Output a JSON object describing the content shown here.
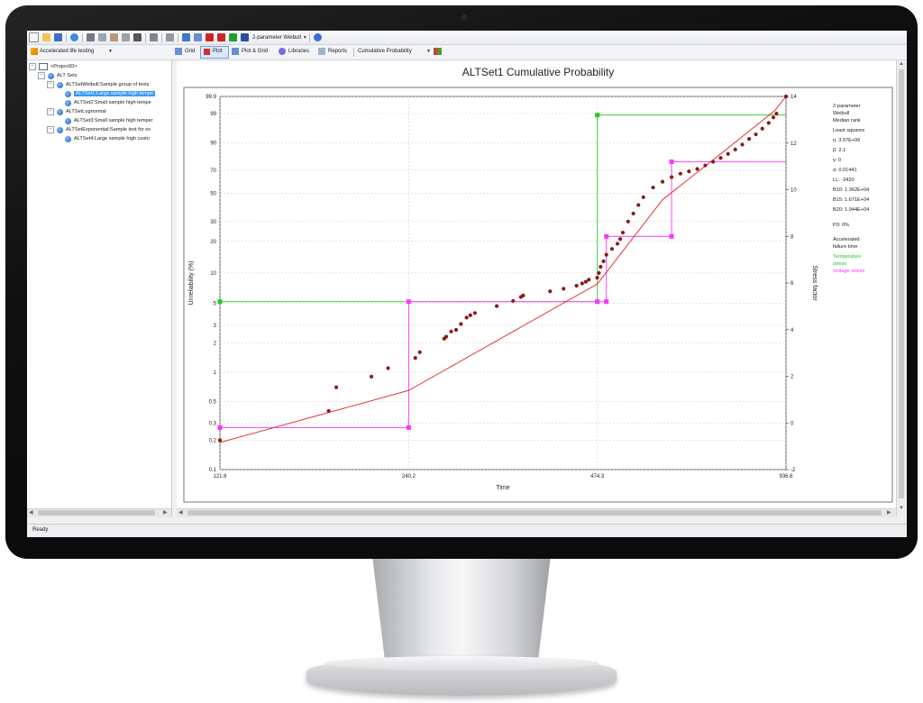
{
  "toolbar": {
    "model_label": "2-parameter Weibull",
    "app_mode_label": "Accelerated life testing",
    "tabs": [
      "Grid",
      "Plot",
      "Plot & Grid",
      "Libraries",
      "Reports"
    ],
    "plot_type_label": "Cumulative Probability"
  },
  "tree": {
    "root": "<ProjectID>",
    "group": "ALT Sets",
    "items": [
      {
        "label": "ALTSetWeibull:Sample group of tests",
        "children": [
          "ALTSet1:Large sample high tempe",
          "ALTSet2:Small sample high tempe"
        ]
      },
      {
        "label": "ALTSetLognormal",
        "children": [
          "ALTSet3:Small sample high temper"
        ]
      },
      {
        "label": "ALTSetExponential:Sample test for ex",
        "children": [
          "ALTSet4:Large sample high custo"
        ]
      }
    ],
    "selected": "ALTSet1:Large sample high tempe"
  },
  "status": "Ready",
  "chart_data": {
    "type": "scatter",
    "title": "ALTSet1 Cumulative Probability",
    "xlabel": "Time",
    "ylabel": "Unreliability (%)",
    "y2label": "Stress factor",
    "x_ticks": [
      "121.6",
      "240.2",
      "474.3",
      "936.6"
    ],
    "y_ticks": [
      "0.1",
      "0.2",
      "0.3",
      "0.5",
      "1",
      "2",
      "3",
      "5",
      "10",
      "20",
      "30",
      "50",
      "70",
      "90",
      "99",
      "99.9"
    ],
    "y2_ticks": [
      "-2",
      "0",
      "2",
      "4",
      "6",
      "8",
      "10",
      "12",
      "14"
    ],
    "ylim": [
      0.1,
      99.9
    ],
    "y2lim": [
      -2,
      14
    ],
    "xlim": [
      121.6,
      936.6
    ],
    "y_scale": "weibull",
    "x_scale": "log",
    "series": [
      {
        "name": "Observed data",
        "color": "#8b1a1a",
        "points": [
          [
            121.6,
            0.2
          ],
          [
            180.0,
            0.4
          ],
          [
            185.0,
            0.7
          ],
          [
            210.0,
            0.9
          ],
          [
            223.0,
            1.1
          ],
          [
            246.0,
            1.4
          ],
          [
            250.0,
            1.6
          ],
          [
            273.0,
            2.2
          ],
          [
            275.0,
            2.3
          ],
          [
            280.0,
            2.6
          ],
          [
            285.0,
            2.7
          ],
          [
            290.0,
            3.1
          ],
          [
            296.0,
            3.6
          ],
          [
            300.0,
            3.8
          ],
          [
            305.0,
            4.0
          ],
          [
            330.0,
            4.7
          ],
          [
            350.0,
            5.3
          ],
          [
            360.0,
            5.8
          ],
          [
            363.0,
            6.0
          ],
          [
            400.0,
            6.6
          ],
          [
            420.0,
            7.0
          ],
          [
            440.0,
            7.5
          ],
          [
            449.0,
            7.9
          ],
          [
            455.0,
            8.2
          ],
          [
            460.0,
            8.6
          ],
          [
            474.0,
            9.0
          ],
          [
            477.0,
            10.0
          ],
          [
            480.0,
            11.5
          ],
          [
            485.0,
            13.0
          ],
          [
            490.0,
            15.0
          ],
          [
            500.0,
            17.0
          ],
          [
            510.0,
            19.0
          ],
          [
            515.0,
            21.0
          ],
          [
            520.0,
            24.0
          ],
          [
            530.0,
            30.0
          ],
          [
            540.0,
            35.0
          ],
          [
            550.0,
            41.0
          ],
          [
            560.0,
            47.0
          ],
          [
            580.0,
            55.0
          ],
          [
            600.0,
            60.0
          ],
          [
            620.0,
            64.0
          ],
          [
            640.0,
            67.0
          ],
          [
            660.0,
            69.0
          ],
          [
            680.0,
            71.0
          ],
          [
            700.0,
            74.0
          ],
          [
            720.0,
            77.0
          ],
          [
            740.0,
            80.0
          ],
          [
            760.0,
            83.0
          ],
          [
            780.0,
            86.0
          ],
          [
            800.0,
            89.0
          ],
          [
            820.0,
            92.0
          ],
          [
            840.0,
            94.0
          ],
          [
            860.0,
            96.0
          ],
          [
            880.0,
            97.5
          ],
          [
            895.0,
            98.5
          ],
          [
            905.0,
            99.0
          ],
          [
            936.6,
            99.9
          ]
        ]
      }
    ],
    "fit_line": [
      [
        121.6,
        0.19
      ],
      [
        240.2,
        0.65
      ],
      [
        474.3,
        7.8
      ],
      [
        600.0,
        45.0
      ],
      [
        750.0,
        85.0
      ],
      [
        900.0,
        99.3
      ],
      [
        936.6,
        99.9
      ]
    ],
    "stress_profiles": [
      {
        "name": "Temperature stress",
        "color": "#22cc22",
        "steps": [
          [
            121.6,
            5.2
          ],
          [
            474.3,
            5.2
          ],
          [
            474.3,
            13.2
          ],
          [
            936.6,
            13.2
          ]
        ]
      },
      {
        "name": "Voltage stress",
        "color": "#ff33ff",
        "steps": [
          [
            121.6,
            -0.2
          ],
          [
            240.2,
            -0.2
          ],
          [
            240.2,
            5.2
          ],
          [
            474.3,
            5.2
          ],
          [
            490.0,
            5.2
          ],
          [
            490.0,
            8.0
          ],
          [
            620.0,
            8.0
          ],
          [
            620.0,
            11.2
          ],
          [
            936.6,
            11.2
          ]
        ]
      }
    ],
    "legend_position": "right"
  },
  "legend": {
    "model": "2-parameter",
    "dist": "Weibull",
    "rank": "Median rank",
    "method": "Least squares",
    "params": [
      "η: 3.97E+06",
      "β: 2.1",
      "γ: 0",
      "α: 0.01441",
      "LL: -2420",
      "B10: 1.362E+04",
      "B15: 1.671E+04",
      "B20: 1.944E+04"
    ],
    "p0": "P0: 0%",
    "accel_title": "Accelerated",
    "accel_sub": "failure time",
    "temp_label": "Temperature",
    "temp_sub": "stress",
    "volt_label": "Voltage stress",
    "temp_color": "#22cc22",
    "volt_color": "#ff33ff"
  }
}
